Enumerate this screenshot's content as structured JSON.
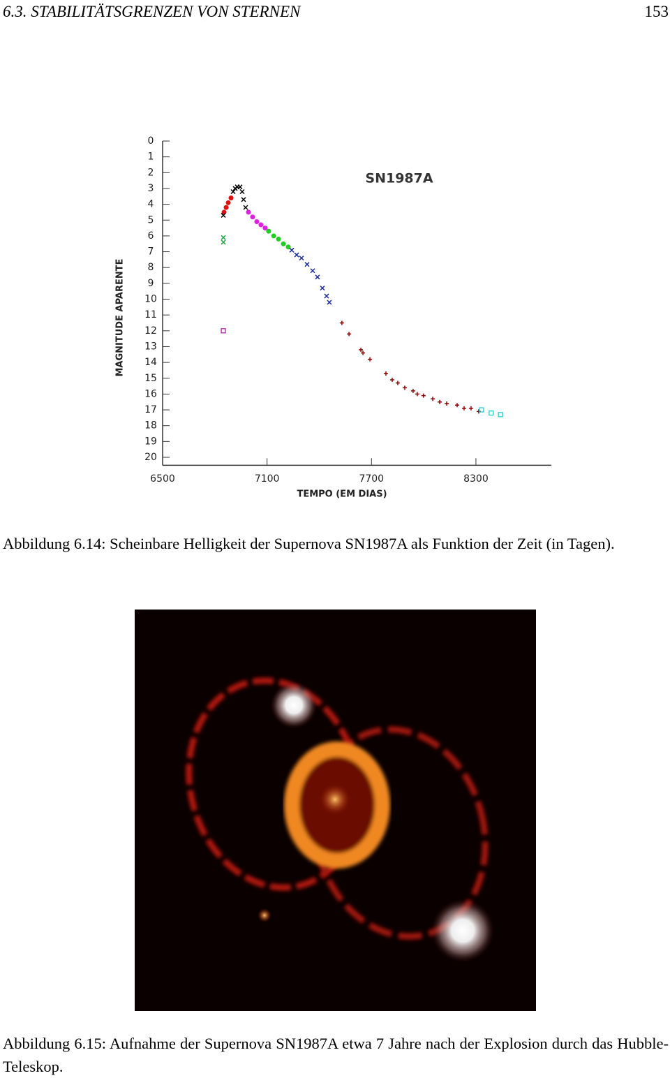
{
  "header": {
    "section": "6.3.  STABILITÄTSGRENZEN VON STERNEN",
    "page": "153"
  },
  "chart_data": {
    "type": "scatter",
    "title": "SN1987A",
    "xlabel": "TEMPO (EM DIAS)",
    "ylabel": "MAGNITUDE APARENTE",
    "xlim": [
      6500,
      8733
    ],
    "ylim": [
      0,
      20.5
    ],
    "y_inverted": true,
    "xticks": [
      6500,
      7100,
      7700,
      8300
    ],
    "yticks": [
      0,
      1,
      2,
      3,
      4,
      5,
      6,
      7,
      8,
      9,
      10,
      11,
      12,
      13,
      14,
      15,
      16,
      17,
      18,
      19,
      20
    ],
    "series": [
      {
        "color": "#e01010",
        "marker": "dot",
        "x": [
          6853,
          6865,
          6877,
          6893
        ],
        "values": [
          4.5,
          4.2,
          3.9,
          3.6
        ]
      },
      {
        "color": "#000000",
        "marker": "x",
        "x": [
          6849,
          6905,
          6917,
          6929,
          6945,
          6957,
          6965,
          6977
        ],
        "values": [
          4.7,
          3.2,
          3.0,
          2.9,
          2.9,
          3.2,
          3.7,
          4.2
        ]
      },
      {
        "color": "#e020e0",
        "marker": "dot",
        "x": [
          6993,
          7017,
          7041,
          7065,
          7089
        ],
        "values": [
          4.5,
          4.8,
          5.1,
          5.3,
          5.5
        ]
      },
      {
        "color": "#22cc22",
        "marker": "dot",
        "x": [
          7109,
          7138,
          7166,
          7194,
          7222
        ],
        "values": [
          5.7,
          6.0,
          6.2,
          6.5,
          6.7
        ]
      },
      {
        "color": "#1a2a9a",
        "marker": "x",
        "x": [
          7242,
          7270,
          7298,
          7330,
          7362,
          7390,
          7418,
          7442,
          7458
        ],
        "values": [
          6.9,
          7.2,
          7.4,
          7.8,
          8.2,
          8.6,
          9.3,
          9.8,
          10.2
        ]
      },
      {
        "color": "#22aa44",
        "marker": "x",
        "x": [
          6849,
          6849
        ],
        "values": [
          6.1,
          6.4
        ]
      },
      {
        "color": "#aa22aa",
        "marker": "square",
        "x": [
          6849
        ],
        "values": [
          12.0
        ]
      },
      {
        "color": "#8b0000",
        "marker": "plus",
        "x": [
          7530,
          7571,
          7639,
          7651,
          7691,
          7783,
          7819,
          7851,
          7891,
          7939,
          7963,
          7999,
          8052,
          8092,
          8132,
          8192,
          8232,
          8272,
          8316
        ],
        "values": [
          11.5,
          12.2,
          13.2,
          13.4,
          13.8,
          14.7,
          15.1,
          15.3,
          15.6,
          15.8,
          16.0,
          16.1,
          16.3,
          16.5,
          16.6,
          16.7,
          16.9,
          16.9,
          17.1
        ]
      },
      {
        "color": "#22cccc",
        "marker": "square",
        "x": [
          8332,
          8388,
          8441
        ],
        "values": [
          17.0,
          17.2,
          17.3
        ]
      }
    ]
  },
  "caption1": "Abbildung 6.14: Scheinbare Helligkeit der Supernova SN1987A als Funktion der Zeit (in Tagen).",
  "caption2": "Abbildung 6.15: Aufnahme der Supernova SN1987A etwa 7 Jahre nach der Explosion durch das Hubble-Teleskop."
}
